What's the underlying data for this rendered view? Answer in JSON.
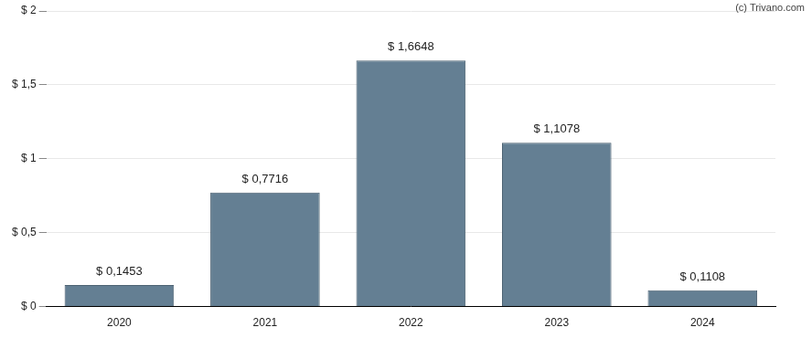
{
  "chart_data": {
    "type": "bar",
    "annotations": [
      "(c) Trivano.com"
    ],
    "categories": [
      "2020",
      "2021",
      "2022",
      "2023",
      "2024"
    ],
    "values": [
      0.1453,
      0.7716,
      1.6648,
      1.1078,
      0.1108
    ],
    "value_labels": [
      "$ 0,1453",
      "$ 0,7716",
      "$ 1,6648",
      "$ 1,1078",
      "$ 0,1108"
    ],
    "data_labels": true,
    "color": "#647f93",
    "ylim": [
      0,
      2
    ],
    "yticks": [
      {
        "value": 0,
        "label": "$ 0"
      },
      {
        "value": 0.5,
        "label": "$ 0,5"
      },
      {
        "value": 1,
        "label": "$ 1"
      },
      {
        "value": 1.5,
        "label": "$ 1,5"
      },
      {
        "value": 2,
        "label": "$ 2"
      }
    ],
    "grid": true
  }
}
